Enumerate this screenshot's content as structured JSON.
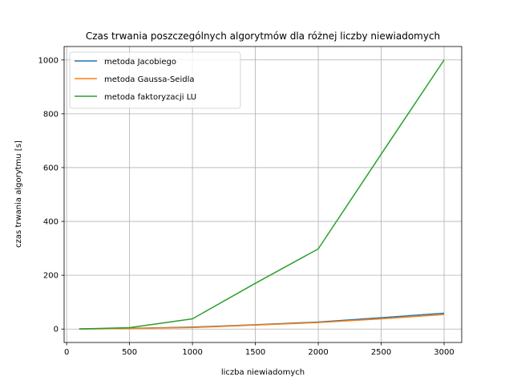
{
  "chart_data": {
    "type": "line",
    "title": "Czas trwania poszczególnych algorytmów dla różnej liczby niewiadomych",
    "xlabel": "liczba niewiadomych",
    "ylabel": "czas trwania algorytmu [s]",
    "x": [
      100,
      500,
      1000,
      1500,
      2000,
      2500,
      3000
    ],
    "xlim": [
      -20,
      3140
    ],
    "ylim": [
      -50,
      1050
    ],
    "xticks": [
      0,
      500,
      1000,
      1500,
      2000,
      2500,
      3000
    ],
    "yticks": [
      0,
      200,
      400,
      600,
      800,
      1000
    ],
    "grid": true,
    "legend_position": "top-left",
    "series": [
      {
        "name": "metoda Jacobiego",
        "color": "#1f77b4",
        "values": [
          0.2,
          2.5,
          7,
          16,
          26,
          42,
          59
        ]
      },
      {
        "name": "metoda Gaussa-Seidla",
        "color": "#ff7f0e",
        "values": [
          0.2,
          2,
          5.5,
          15,
          24,
          38,
          54
        ]
      },
      {
        "name": "metoda faktoryzacji LU",
        "color": "#2ca02c",
        "values": [
          0.3,
          5,
          38,
          170,
          298,
          650,
          1000
        ]
      }
    ]
  }
}
